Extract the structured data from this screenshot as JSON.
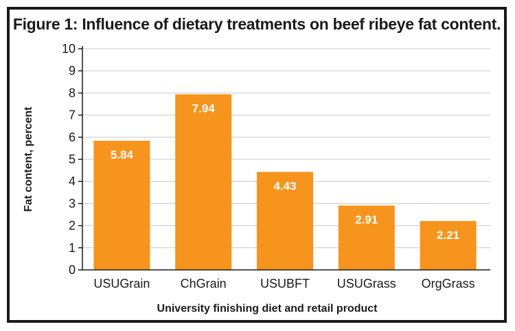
{
  "chart_data": {
    "type": "bar",
    "title": "Figure 1: Influence of dietary treatments on beef ribeye fat content.",
    "xlabel": "University finishing diet and retail product",
    "ylabel": "Fat content, percent",
    "categories": [
      "USUGrain",
      "ChGrain",
      "USUBFT",
      "USUGrass",
      "OrgGrass"
    ],
    "values": [
      5.84,
      7.94,
      4.43,
      2.91,
      2.21
    ],
    "data_labels": [
      "5.84",
      "7.94",
      "4.43",
      "2.91",
      "2.21"
    ],
    "yticks": [
      "0",
      "1",
      "2",
      "3",
      "4",
      "5",
      "6",
      "7",
      "8",
      "9",
      "10"
    ],
    "ylim": [
      0,
      10
    ],
    "grid": true,
    "colors": {
      "bar": "#f7941d",
      "grid": "#c8c8c8",
      "axis": "#1a1a1a"
    }
  }
}
